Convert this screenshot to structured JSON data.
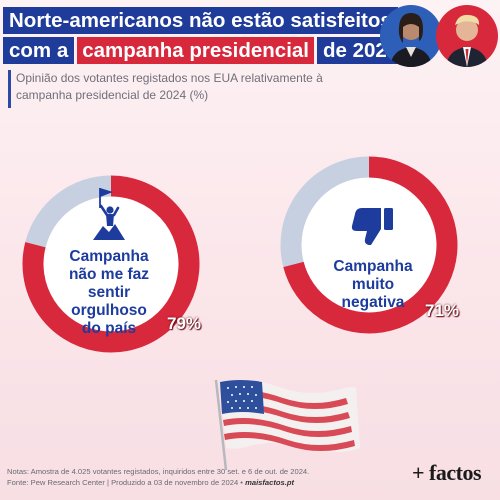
{
  "title": {
    "line1": "Norte-americanos não estão satisfeitos",
    "line2_prefix": "com a",
    "line2_highlight": "campanha presidencial",
    "line2_suffix": "de 2024"
  },
  "subtitle": "Opinião dos votantes registados nos EUA relativamente à campanha presidencial de 2024 (%)",
  "colors": {
    "primary_blue": "#1f3c9a",
    "accent_red": "#d8283c",
    "remainder_gray": "#c7d0e0"
  },
  "chart_data": [
    {
      "type": "pie",
      "variant": "donut",
      "label": "Campanha não me faz sentir orgulhoso do país",
      "value": 79,
      "value_text": "79%",
      "remainder": 21,
      "icon": "person-with-flag-on-mountain-icon"
    },
    {
      "type": "pie",
      "variant": "donut",
      "label": "Campanha muito negativa",
      "value": 71,
      "value_text": "71%",
      "remainder": 29,
      "icon": "thumbs-down-icon"
    }
  ],
  "notes": {
    "line1": "Notas: Amostra de 4.025 votantes registados, inquiridos entre 30 set. e 6 de out. de 2024.",
    "line2_prefix": "Fonte: Pew Research Center | Produzido a 03 de novembro de 2024 •",
    "line2_site": "maisfactos.pt"
  },
  "logo": "+ factos"
}
